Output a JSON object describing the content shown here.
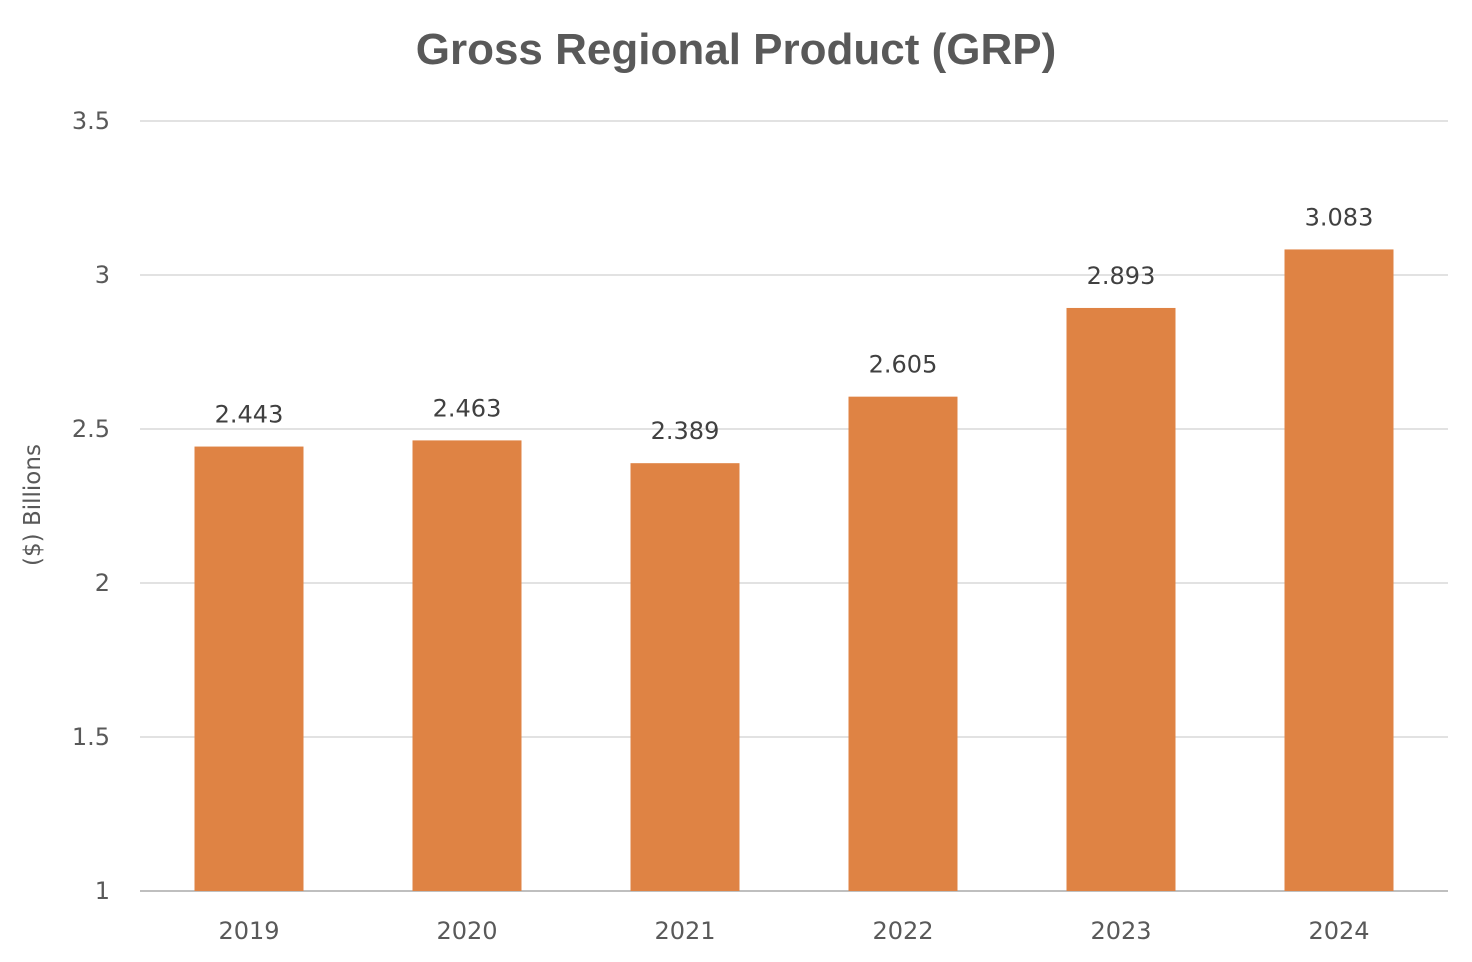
{
  "chart_data": {
    "type": "bar",
    "title": "Gross Regional Product (GRP)",
    "xlabel": "",
    "ylabel": "($) Billions",
    "categories": [
      "2019",
      "2020",
      "2021",
      "2022",
      "2023",
      "2024"
    ],
    "values": [
      2.443,
      2.463,
      2.389,
      2.605,
      2.893,
      3.083
    ],
    "data_labels": [
      "2.443",
      "2.463",
      "2.389",
      "2.605",
      "2.893",
      "3.083"
    ],
    "ylim": [
      1,
      3.5
    ],
    "yticks": [
      1,
      1.5,
      2,
      2.5,
      3,
      3.5
    ],
    "ytick_labels": [
      "1",
      "1.5",
      "2",
      "2.5",
      "3",
      "3.5"
    ],
    "grid": true,
    "legend": "none",
    "bar_color": "#DF8344"
  }
}
